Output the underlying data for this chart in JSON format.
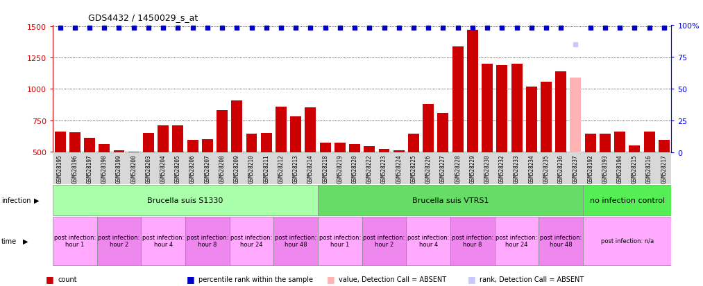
{
  "title": "GDS4432 / 1450029_s_at",
  "samples": [
    "GSM528195",
    "GSM528196",
    "GSM528197",
    "GSM528198",
    "GSM528199",
    "GSM528200",
    "GSM528203",
    "GSM528204",
    "GSM528205",
    "GSM528206",
    "GSM528207",
    "GSM528208",
    "GSM528209",
    "GSM528210",
    "GSM528211",
    "GSM528212",
    "GSM528213",
    "GSM528214",
    "GSM528218",
    "GSM528219",
    "GSM528220",
    "GSM528222",
    "GSM528223",
    "GSM528224",
    "GSM528225",
    "GSM528226",
    "GSM528227",
    "GSM528228",
    "GSM528229",
    "GSM528230",
    "GSM528232",
    "GSM528233",
    "GSM528234",
    "GSM528235",
    "GSM528236",
    "GSM528237",
    "GSM528192",
    "GSM528193",
    "GSM528194",
    "GSM528215",
    "GSM528216",
    "GSM528217"
  ],
  "values": [
    660,
    655,
    610,
    560,
    510,
    500,
    650,
    710,
    710,
    590,
    600,
    830,
    910,
    640,
    645,
    860,
    780,
    850,
    570,
    570,
    560,
    540,
    520,
    510,
    640,
    880,
    810,
    1340,
    1470,
    1200,
    1190,
    1200,
    1020,
    1060,
    1140,
    1090,
    640,
    640,
    660,
    550,
    660,
    590
  ],
  "absent_indices": [
    35
  ],
  "percentile_ranks": [
    98,
    98,
    98,
    98,
    98,
    98,
    98,
    98,
    98,
    98,
    98,
    98,
    98,
    98,
    98,
    98,
    98,
    98,
    98,
    98,
    98,
    98,
    98,
    98,
    98,
    98,
    98,
    98,
    98,
    98,
    98,
    98,
    98,
    98,
    98,
    85,
    98,
    98,
    98,
    98,
    98,
    98
  ],
  "ylim_left": [
    490,
    1510
  ],
  "ylim_right": [
    0,
    100
  ],
  "yticks_left": [
    500,
    750,
    1000,
    1250,
    1500
  ],
  "yticks_right": [
    0,
    25,
    50,
    75,
    100
  ],
  "bar_color": "#cc0000",
  "absent_bar_color": "#ffb3b3",
  "percentile_color": "#0000cc",
  "absent_rank_color": "#c8c8ff",
  "grid_color": "#000000",
  "bg_color": "#ffffff",
  "xtick_bg": "#d8d8d8",
  "infection_groups": [
    {
      "label": "Brucella suis S1330",
      "start": 0,
      "end": 17,
      "color": "#aaffaa"
    },
    {
      "label": "Brucella suis VTRS1",
      "start": 18,
      "end": 35,
      "color": "#66dd66"
    },
    {
      "label": "no infection control",
      "start": 36,
      "end": 41,
      "color": "#55ee55"
    }
  ],
  "time_groups": [
    {
      "label": "post infection:\nhour 1",
      "start": 0,
      "end": 2,
      "color": "#ffaaff"
    },
    {
      "label": "post infection:\nhour 2",
      "start": 3,
      "end": 5,
      "color": "#ee88ee"
    },
    {
      "label": "post infection:\nhour 4",
      "start": 6,
      "end": 8,
      "color": "#ffaaff"
    },
    {
      "label": "post infection:\nhour 8",
      "start": 9,
      "end": 11,
      "color": "#ee88ee"
    },
    {
      "label": "post infection:\nhour 24",
      "start": 12,
      "end": 14,
      "color": "#ffaaff"
    },
    {
      "label": "post infection:\nhour 48",
      "start": 15,
      "end": 17,
      "color": "#ee88ee"
    },
    {
      "label": "post infection:\nhour 1",
      "start": 18,
      "end": 20,
      "color": "#ffaaff"
    },
    {
      "label": "post infection:\nhour 2",
      "start": 21,
      "end": 23,
      "color": "#ee88ee"
    },
    {
      "label": "post infection:\nhour 4",
      "start": 24,
      "end": 26,
      "color": "#ffaaff"
    },
    {
      "label": "post infection:\nhour 8",
      "start": 27,
      "end": 29,
      "color": "#ee88ee"
    },
    {
      "label": "post infection:\nhour 24",
      "start": 30,
      "end": 32,
      "color": "#ffaaff"
    },
    {
      "label": "post infection:\nhour 48",
      "start": 33,
      "end": 35,
      "color": "#ee88ee"
    },
    {
      "label": "post infection: n/a",
      "start": 36,
      "end": 41,
      "color": "#ffaaff"
    }
  ],
  "left_axis_color": "#cc0000",
  "right_axis_color": "#0000cc",
  "legend_items": [
    {
      "color": "#cc0000",
      "label": "count"
    },
    {
      "color": "#0000cc",
      "label": "percentile rank within the sample"
    },
    {
      "color": "#ffb3b3",
      "label": "value, Detection Call = ABSENT"
    },
    {
      "color": "#c8c8ff",
      "label": "rank, Detection Call = ABSENT"
    }
  ]
}
